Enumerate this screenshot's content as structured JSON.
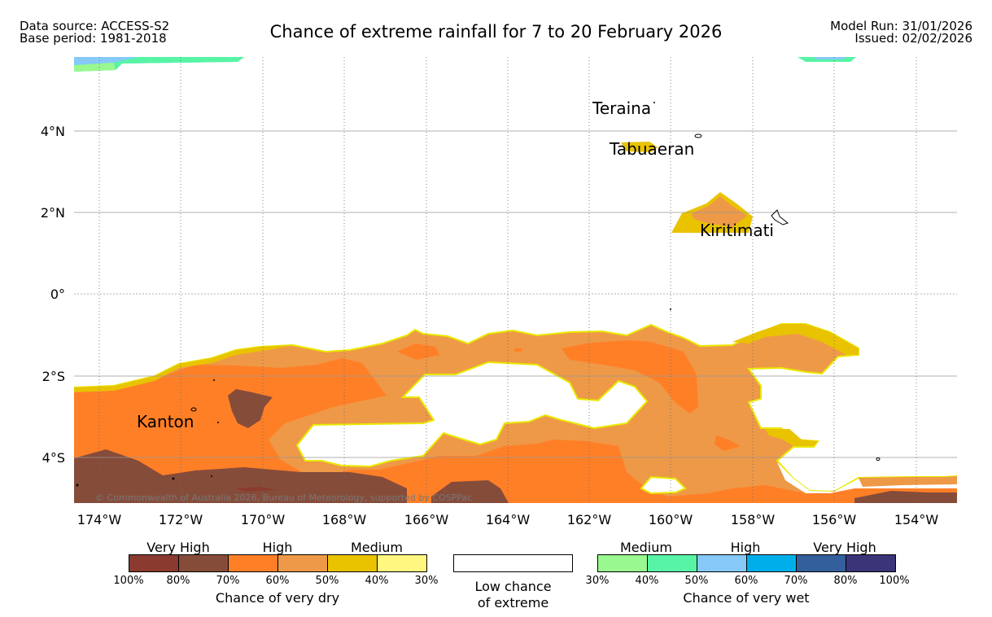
{
  "header": {
    "data_source": "Data source: ACCESS-S2",
    "base_period": "Base period: 1981-2018",
    "model_run": "Model Run: 31/01/2026",
    "issued": "Issued: 02/02/2026",
    "title": "Chance of extreme rainfall for 7 to 20 February 2026"
  },
  "map": {
    "lat_labels": [
      "4°N",
      "2°N",
      "0°",
      "2°S",
      "4°S"
    ],
    "lon_labels": [
      "174°W",
      "172°W",
      "170°W",
      "168°W",
      "166°W",
      "164°W",
      "162°W",
      "160°W",
      "158°W",
      "156°W",
      "154°W"
    ],
    "places": [
      "Teraina",
      "Tabuaeran",
      "Kiritimati",
      "Kanton"
    ],
    "copyright": "© Commonwealth of Australia 2026, Bureau of Meteorology, supported by COSPPac"
  },
  "legend": {
    "dry": {
      "groups": [
        "Very High",
        "High",
        "Medium"
      ],
      "ticks": [
        "100%",
        "80%",
        "70%",
        "60%",
        "50%",
        "40%",
        "30%"
      ],
      "colors": [
        "#8B3A2F",
        "#864C3A",
        "#FF7F27",
        "#EE9947",
        "#E9C300",
        "#FFF77F"
      ],
      "label": "Chance of very dry"
    },
    "low": {
      "line1": "Low chance",
      "line2": "of extreme"
    },
    "wet": {
      "groups": [
        "Medium",
        "High",
        "Very High"
      ],
      "ticks": [
        "30%",
        "40%",
        "50%",
        "60%",
        "70%",
        "80%",
        "100%"
      ],
      "colors": [
        "#99F88F",
        "#57F4A5",
        "#86C9F8",
        "#00AFEA",
        "#33609C",
        "#3B3479"
      ],
      "label": "Chance of very wet"
    }
  }
}
